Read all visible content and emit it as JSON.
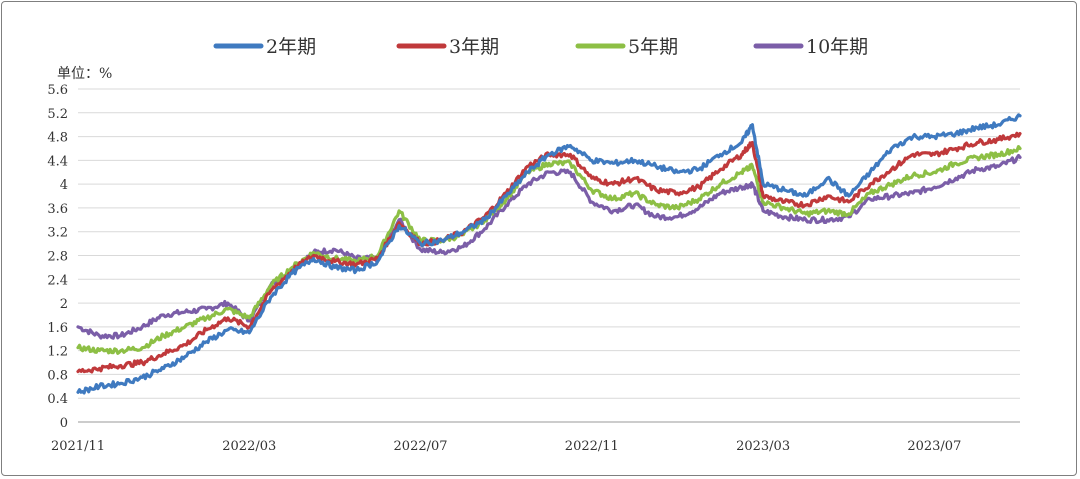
{
  "chart_data": {
    "type": "line",
    "title": "",
    "unit_label": "单位：%",
    "xlabel": "",
    "ylabel": "%",
    "ylim": [
      0,
      5.6
    ],
    "y_ticks": [
      "0",
      "0.4",
      "0.8",
      "1.2",
      "1.6",
      "2",
      "2.4",
      "2.8",
      "3.2",
      "3.6",
      "4",
      "4.4",
      "4.8",
      "5.2",
      "5.6"
    ],
    "x_tick_labels": [
      "2021/11",
      "2022/03",
      "2022/07",
      "2022/11",
      "2023/03",
      "2023/07"
    ],
    "x_tick_months": [
      0,
      4,
      8,
      12,
      16,
      20
    ],
    "x_range_months": [
      0,
      22
    ],
    "grid": true,
    "legend": "top",
    "x_months": [
      0,
      0.5,
      1,
      1.5,
      2,
      2.5,
      3,
      3.5,
      4,
      4.5,
      5,
      5.5,
      6,
      6.5,
      7,
      7.5,
      8,
      8.5,
      9,
      9.5,
      10,
      10.5,
      11,
      11.5,
      12,
      12.5,
      13,
      13.5,
      14,
      14.5,
      15,
      15.5,
      15.75,
      16,
      16.5,
      17,
      17.5,
      18,
      18.5,
      19,
      19.5,
      20,
      20.5,
      21,
      21.5,
      22
    ],
    "series": [
      {
        "name": "2年期",
        "color": "#3f7ac0",
        "values": [
          0.5,
          0.6,
          0.65,
          0.75,
          0.9,
          1.1,
          1.35,
          1.55,
          1.5,
          2.1,
          2.5,
          2.75,
          2.6,
          2.55,
          2.7,
          3.3,
          3.0,
          3.05,
          3.2,
          3.4,
          3.8,
          4.2,
          4.5,
          4.65,
          4.4,
          4.35,
          4.4,
          4.3,
          4.2,
          4.25,
          4.5,
          4.7,
          5.0,
          4.0,
          3.9,
          3.8,
          4.1,
          3.8,
          4.2,
          4.6,
          4.8,
          4.8,
          4.85,
          4.95,
          5.0,
          5.15
        ]
      },
      {
        "name": "3年期",
        "color": "#c0393b",
        "values": [
          0.85,
          0.9,
          0.95,
          1.0,
          1.15,
          1.3,
          1.55,
          1.75,
          1.6,
          2.2,
          2.55,
          2.8,
          2.7,
          2.65,
          2.75,
          3.35,
          3.0,
          3.05,
          3.2,
          3.45,
          3.85,
          4.3,
          4.5,
          4.5,
          4.1,
          4.0,
          4.1,
          3.9,
          3.85,
          3.95,
          4.25,
          4.5,
          4.7,
          3.8,
          3.7,
          3.65,
          3.8,
          3.7,
          4.0,
          4.25,
          4.5,
          4.5,
          4.6,
          4.7,
          4.75,
          4.85
        ]
      },
      {
        "name": "5年期",
        "color": "#8dbf45",
        "values": [
          1.25,
          1.2,
          1.2,
          1.25,
          1.45,
          1.6,
          1.75,
          1.9,
          1.75,
          2.3,
          2.6,
          2.85,
          2.75,
          2.7,
          2.8,
          3.55,
          3.05,
          3.05,
          3.15,
          3.4,
          3.75,
          4.2,
          4.35,
          4.35,
          3.9,
          3.75,
          3.85,
          3.65,
          3.6,
          3.75,
          4.0,
          4.2,
          4.3,
          3.7,
          3.6,
          3.5,
          3.55,
          3.5,
          3.85,
          4.0,
          4.15,
          4.2,
          4.35,
          4.45,
          4.5,
          4.6
        ]
      },
      {
        "name": "10年期",
        "color": "#7b5ea8",
        "values": [
          1.6,
          1.45,
          1.45,
          1.6,
          1.8,
          1.85,
          1.9,
          2.0,
          1.7,
          2.3,
          2.55,
          2.85,
          2.9,
          2.75,
          2.75,
          3.4,
          2.9,
          2.85,
          2.95,
          3.25,
          3.65,
          4.0,
          4.2,
          4.2,
          3.7,
          3.55,
          3.65,
          3.45,
          3.45,
          3.6,
          3.85,
          3.95,
          4.0,
          3.55,
          3.45,
          3.4,
          3.4,
          3.45,
          3.75,
          3.8,
          3.85,
          3.95,
          4.1,
          4.25,
          4.3,
          4.45
        ]
      }
    ]
  }
}
